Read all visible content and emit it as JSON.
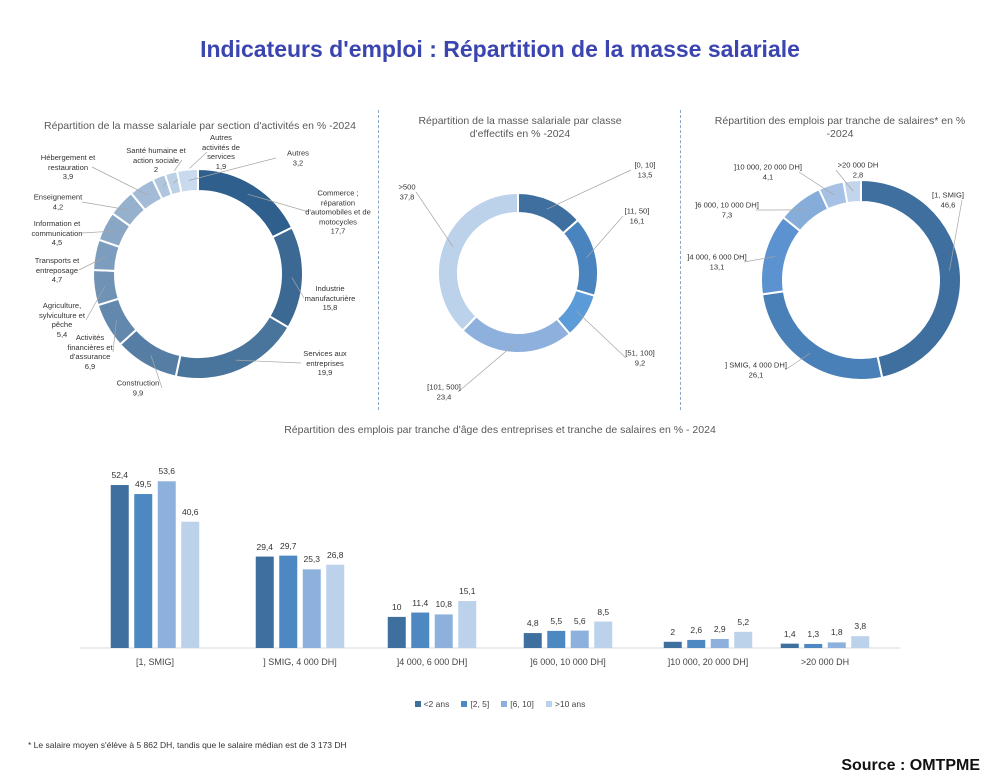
{
  "title": "Indicateurs d'emploi : Répartition de la masse salariale",
  "chart_data": [
    {
      "type": "pie",
      "variant": "donut",
      "title": "Répartition de la masse salariale par section d'activités en % -2024",
      "slices": [
        {
          "label": "Commerce ; réparation d'automobiles et de motocycles",
          "value": 17.7,
          "value_label": "17,7"
        },
        {
          "label": "Industrie manufacturière",
          "value": 15.8,
          "value_label": "15,8"
        },
        {
          "label": "Services aux entreprises",
          "value": 19.9,
          "value_label": "19,9"
        },
        {
          "label": "Construction",
          "value": 9.9,
          "value_label": "9,9"
        },
        {
          "label": "Activités financières et d'assurance",
          "value": 6.9,
          "value_label": "6,9"
        },
        {
          "label": "Agriculture, sylviculture et pêche",
          "value": 5.4,
          "value_label": "5,4"
        },
        {
          "label": "Transports et entreposage",
          "value": 4.7,
          "value_label": "4,7"
        },
        {
          "label": "Information et communication",
          "value": 4.5,
          "value_label": "4,5"
        },
        {
          "label": "Enseignement",
          "value": 4.2,
          "value_label": "4,2"
        },
        {
          "label": "Hébergement et restauration",
          "value": 3.9,
          "value_label": "3,9"
        },
        {
          "label": "Santé humaine et action sociale",
          "value": 2,
          "value_label": "2"
        },
        {
          "label": "Autres activités de services",
          "value": 1.9,
          "value_label": "1,9"
        },
        {
          "label": "Autres",
          "value": 3.2,
          "value_label": "3,2"
        }
      ]
    },
    {
      "type": "pie",
      "variant": "donut",
      "title": "Répartition de la masse salariale par classe d'effectifs en % -2024",
      "slices": [
        {
          "label": "[0, 10]",
          "value": 13.5,
          "value_label": "13,5"
        },
        {
          "label": "[11, 50]",
          "value": 16.1,
          "value_label": "16,1"
        },
        {
          "label": "[51, 100]",
          "value": 9.2,
          "value_label": "9,2"
        },
        {
          "label": "[101, 500]",
          "value": 23.4,
          "value_label": "23,4"
        },
        {
          "label": ">500",
          "value": 37.8,
          "value_label": "37,8"
        }
      ]
    },
    {
      "type": "pie",
      "variant": "donut",
      "title": "Répartition des emplois par tranche de salaires* en % -2024",
      "slices": [
        {
          "label": "[1, SMIG]",
          "value": 46.6,
          "value_label": "46,6"
        },
        {
          "label": "] SMIG, 4 000 DH]",
          "value": 26.1,
          "value_label": "26,1"
        },
        {
          "label": "]4 000, 6 000 DH]",
          "value": 13.1,
          "value_label": "13,1"
        },
        {
          "label": "]6 000, 10 000 DH]",
          "value": 7.3,
          "value_label": "7,3"
        },
        {
          "label": "]10 000, 20 000 DH]",
          "value": 4.1,
          "value_label": "4,1"
        },
        {
          "label": ">20 000 DH",
          "value": 2.8,
          "value_label": "2,8"
        }
      ]
    },
    {
      "type": "bar",
      "title": "Répartition des emplois par tranche d'âge des entreprises et tranche de salaires en % - 2024",
      "categories": [
        "[1, SMIG]",
        "] SMIG, 4 000 DH]",
        "]4 000, 6 000 DH]",
        "]6 000, 10 000 DH]",
        "]10 000, 20 000 DH]",
        ">20 000 DH"
      ],
      "legend": "bottom",
      "series": [
        {
          "name": "<2 ans",
          "color": "#3e6f9f",
          "values": [
            52.4,
            29.4,
            10,
            4.8,
            2,
            1.4
          ],
          "labels": [
            "52,4",
            "29,4",
            "10",
            "4,8",
            "2",
            "1,4"
          ]
        },
        {
          "name": "[2, 5]",
          "color": "#4d88c2",
          "values": [
            49.5,
            29.7,
            11.4,
            5.5,
            2.6,
            1.3
          ],
          "labels": [
            "49,5",
            "29,7",
            "11,4",
            "5,5",
            "2,6",
            "1,3"
          ]
        },
        {
          "name": "[6, 10]",
          "color": "#8db1dc",
          "values": [
            53.6,
            25.3,
            10.8,
            5.6,
            2.9,
            1.8
          ],
          "labels": [
            "53,6",
            "25,3",
            "10,8",
            "5,6",
            "2,9",
            "1,8"
          ]
        },
        {
          "name": ">10 ans",
          "color": "#bcd1ea",
          "values": [
            40.6,
            26.8,
            15.1,
            8.5,
            5.2,
            3.8
          ],
          "labels": [
            "40,6",
            "26,8",
            "15,1",
            "8,5",
            "5,2",
            "3,8"
          ]
        }
      ],
      "ylim": [
        0,
        60
      ]
    }
  ],
  "footnote": "* Le salaire moyen s'élève à 5 862 DH, tandis que le salaire médian est de 3 173 DH",
  "source": "Source : OMTPME"
}
